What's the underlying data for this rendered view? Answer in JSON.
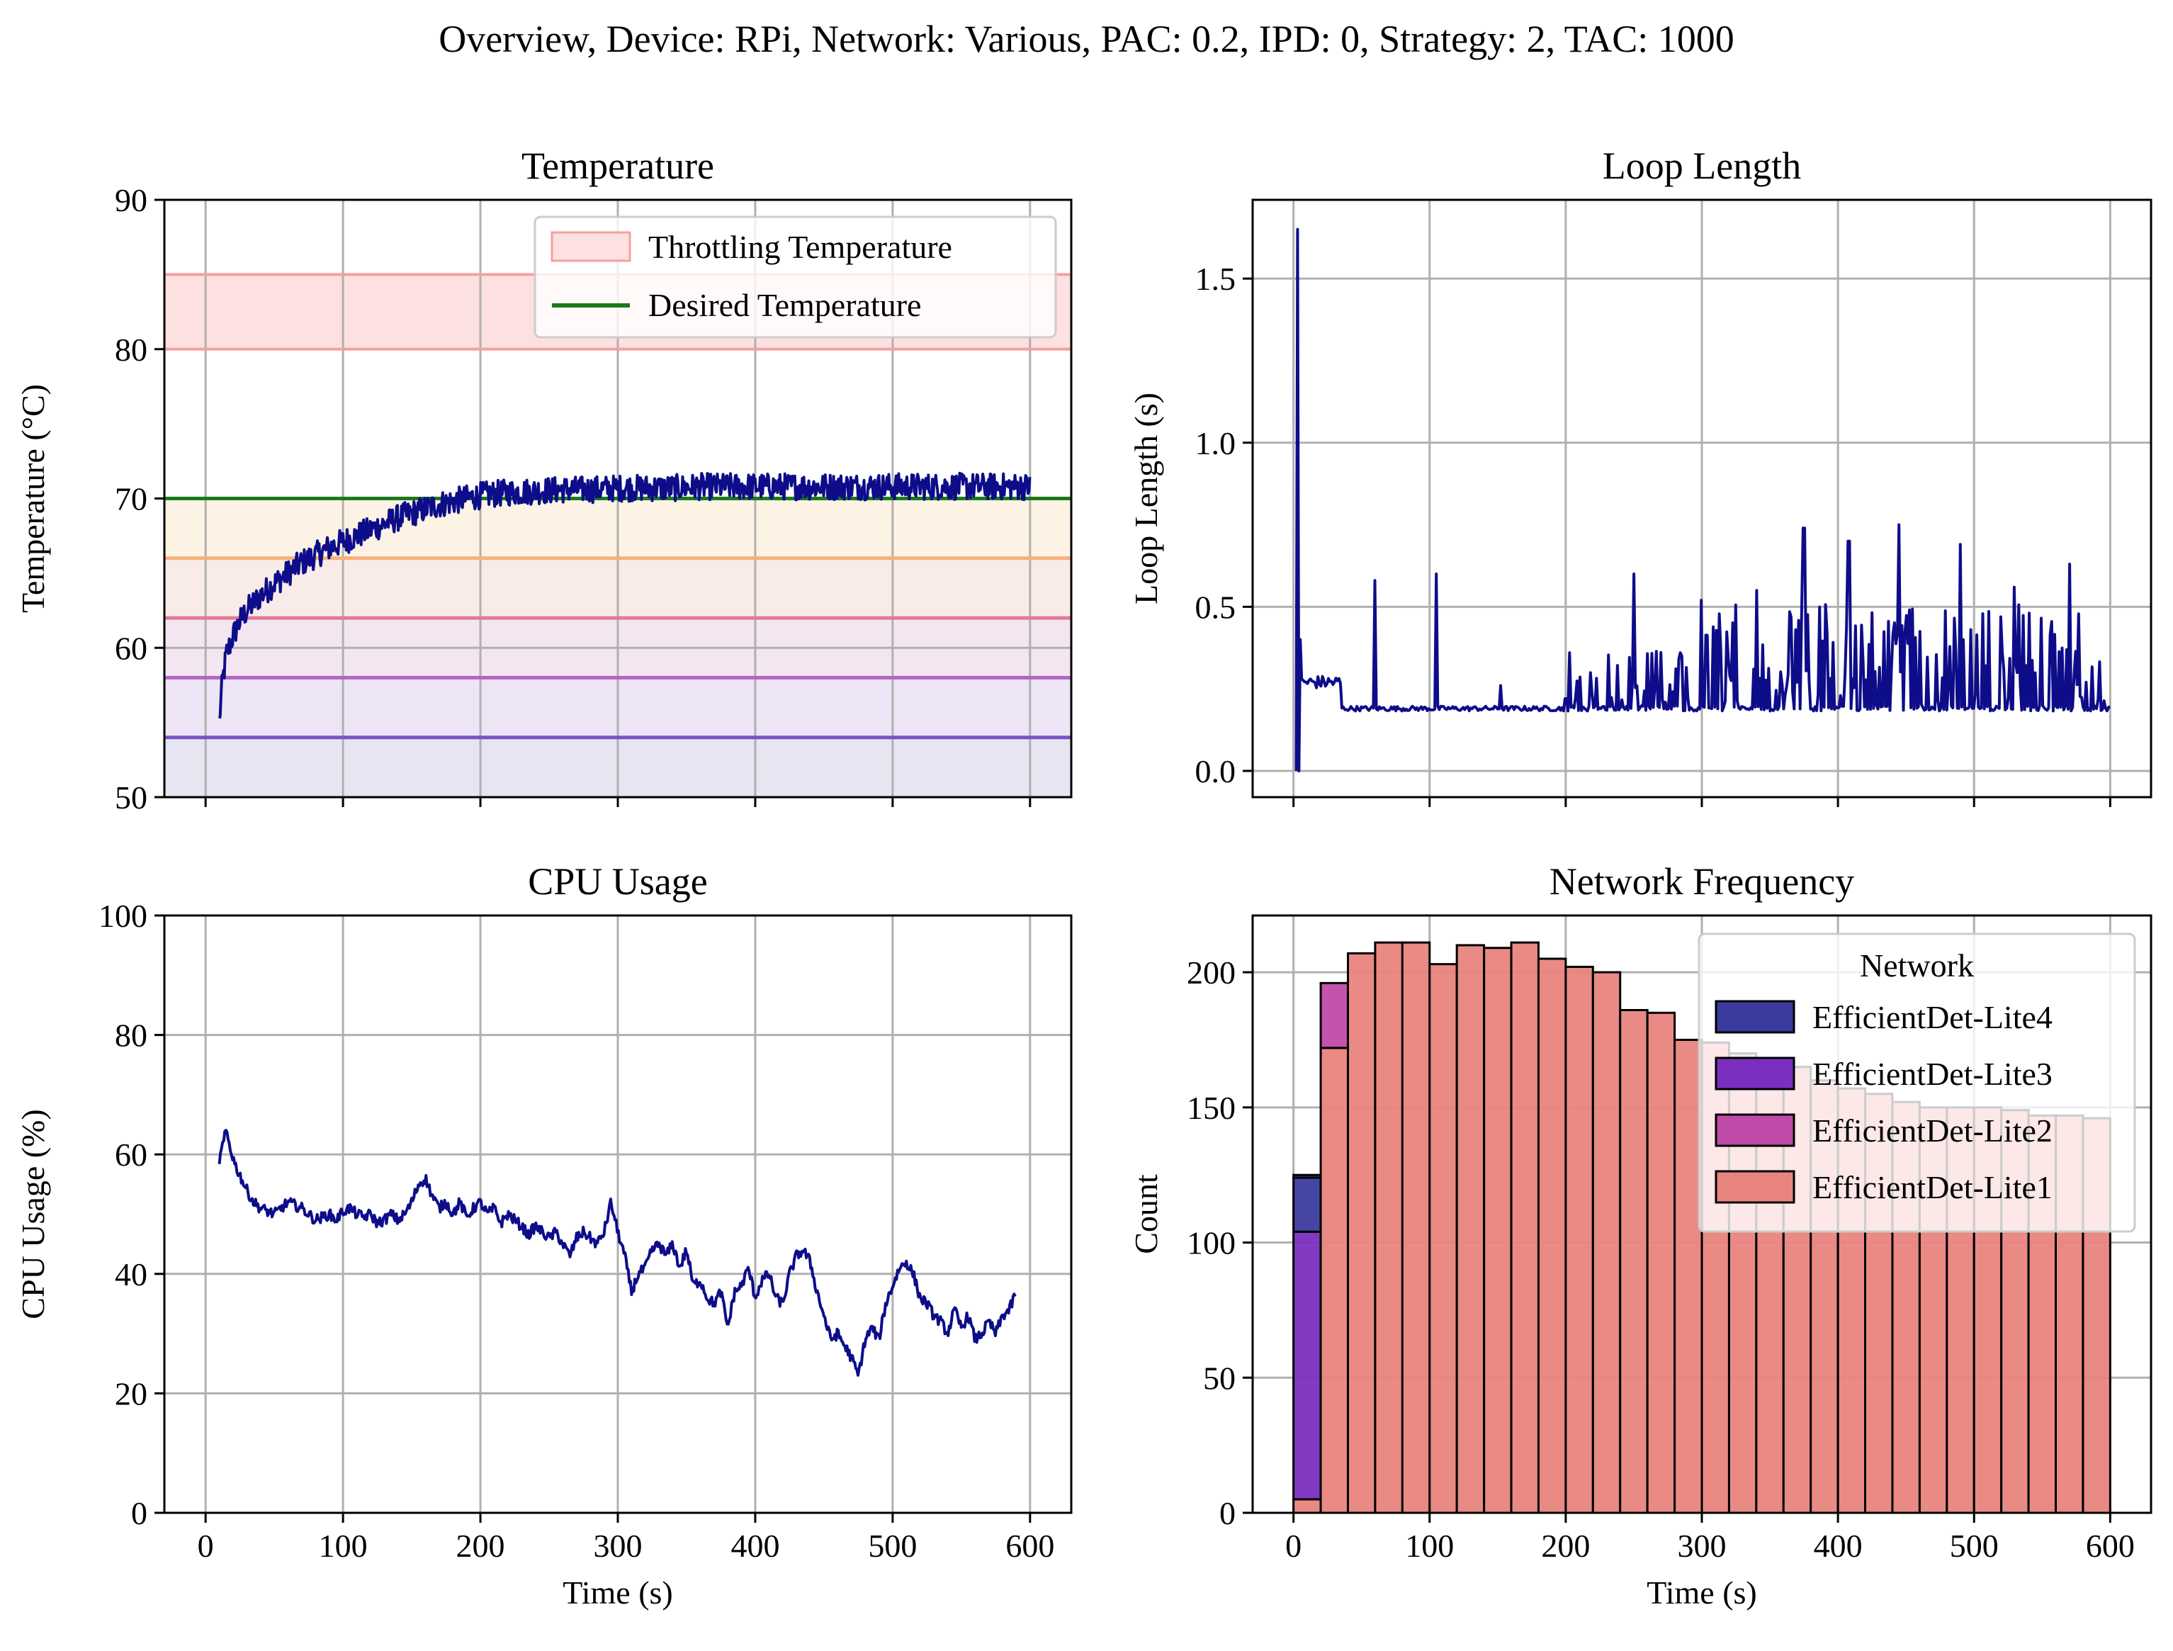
{
  "suptitle": "Overview, Device: RPi, Network: Various, PAC: 0.2, IPD: 0, Strategy: 2, TAC: 1000",
  "colors": {
    "line": "#0d0d8a",
    "grid": "#b0b0b0",
    "desired": "#1a7a1a",
    "throttle_fill": "#fde0e0",
    "throttle_edge": "#f4a0a0",
    "lite4": "#3b3b9e",
    "lite3": "#7b2fbf",
    "lite2": "#c04aa8",
    "lite1": "#e8847e"
  },
  "chart_data": [
    {
      "id": "temperature",
      "type": "line",
      "title": "Temperature",
      "xlabel": "",
      "ylabel": "Temperature (°C)",
      "xlim": [
        -30,
        630
      ],
      "ylim": [
        50,
        90
      ],
      "xticks": [
        0,
        100,
        200,
        300,
        400,
        500,
        600
      ],
      "yticks": [
        50,
        60,
        70,
        80,
        90
      ],
      "ytick_labels": [
        "50",
        "60",
        "70",
        "80",
        "90"
      ],
      "grid": true,
      "legend": {
        "placement": "top-right",
        "entries": [
          {
            "label": "Throttling Temperature",
            "kind": "patch"
          },
          {
            "label": "Desired Temperature",
            "kind": "line"
          }
        ]
      },
      "throttling_band": [
        80,
        85
      ],
      "desired_temperature": 70,
      "threshold_lines": [
        {
          "y": 66,
          "color": "#f5b07a",
          "fill": "#fdf3e4"
        },
        {
          "y": 62,
          "color": "#e07a96",
          "fill": "#f9ebe8"
        },
        {
          "y": 58,
          "color": "#b264c2",
          "fill": "#f3e6f1"
        },
        {
          "y": 54,
          "color": "#7a52c4",
          "fill": "#ede4f5"
        },
        {
          "y": 50,
          "color": "#7a52c4",
          "fill": "#e6e6f2"
        }
      ],
      "series": [
        {
          "x": [
            10,
            12,
            15,
            20,
            25,
            30,
            40,
            50,
            60,
            70,
            80,
            90,
            100,
            110,
            120,
            130,
            140,
            150,
            160,
            170,
            180,
            190,
            200,
            220,
            240,
            260,
            280,
            300,
            320,
            340,
            360,
            380,
            400,
            420,
            440,
            460,
            480,
            500,
            520,
            540,
            560,
            580,
            600
          ],
          "y": [
            55,
            57.5,
            59.5,
            60.8,
            61.8,
            62.5,
            63.5,
            64.3,
            65,
            65.7,
            66.2,
            66.7,
            67.1,
            67.5,
            67.9,
            68.3,
            68.7,
            69,
            69.3,
            69.6,
            69.8,
            70,
            70.2,
            70.4,
            70.5,
            70.6,
            70.6,
            70.7,
            70.7,
            70.7,
            70.8,
            70.8,
            70.8,
            70.8,
            70.8,
            70.8,
            70.8,
            70.8,
            70.8,
            70.8,
            70.8,
            70.8,
            70.8
          ],
          "noise_band": 0.9
        }
      ]
    },
    {
      "id": "loop_length",
      "type": "line",
      "title": "Loop Length",
      "xlabel": "",
      "ylabel": "Loop Length (s)",
      "xlim": [
        -30,
        630
      ],
      "ylim": [
        -0.08,
        1.74
      ],
      "xticks": [
        0,
        100,
        200,
        300,
        400,
        500,
        600
      ],
      "yticks": [
        0,
        0.5,
        1.0,
        1.5
      ],
      "ytick_labels": [
        "0.0",
        "0.5",
        "1.0",
        "1.5"
      ],
      "grid": true,
      "spikes": [
        {
          "x": 2,
          "y": 0.0
        },
        {
          "x": 3,
          "y": 1.65
        },
        {
          "x": 5,
          "y": 0.4
        },
        {
          "x": 60,
          "y": 0.58
        },
        {
          "x": 105,
          "y": 0.6
        },
        {
          "x": 152,
          "y": 0.26
        },
        {
          "x": 200,
          "y": 0.22
        },
        {
          "x": 250,
          "y": 0.6
        },
        {
          "x": 300,
          "y": 0.52
        },
        {
          "x": 340,
          "y": 0.55
        },
        {
          "x": 375,
          "y": 0.74
        },
        {
          "x": 408,
          "y": 0.7
        },
        {
          "x": 445,
          "y": 0.75
        },
        {
          "x": 490,
          "y": 0.69
        },
        {
          "x": 530,
          "y": 0.56
        },
        {
          "x": 570,
          "y": 0.63
        }
      ],
      "baseline": 0.19
    },
    {
      "id": "cpu_usage",
      "type": "line",
      "title": "CPU Usage",
      "xlabel": "Time (s)",
      "ylabel": "CPU Usage (%)",
      "xlim": [
        -30,
        630
      ],
      "ylim": [
        0,
        100
      ],
      "xticks": [
        0,
        100,
        200,
        300,
        400,
        500,
        600
      ],
      "xtick_labels": [
        "0",
        "100",
        "200",
        "300",
        "400",
        "500",
        "600"
      ],
      "yticks": [
        0,
        20,
        40,
        60,
        80,
        100
      ],
      "ytick_labels": [
        "0",
        "20",
        "40",
        "60",
        "80",
        "100"
      ],
      "grid": true,
      "series": [
        {
          "x": [
            10,
            12,
            15,
            18,
            22,
            26,
            30,
            35,
            40,
            45,
            50,
            55,
            60,
            65,
            70,
            75,
            80,
            85,
            90,
            95,
            100,
            105,
            110,
            115,
            120,
            125,
            130,
            135,
            140,
            145,
            150,
            155,
            160,
            165,
            170,
            175,
            180,
            185,
            190,
            195,
            200,
            205,
            210,
            215,
            220,
            225,
            230,
            235,
            240,
            245,
            250,
            255,
            260,
            265,
            270,
            275,
            280,
            285,
            290,
            295,
            300,
            305,
            310,
            315,
            320,
            325,
            330,
            335,
            340,
            345,
            350,
            355,
            360,
            365,
            370,
            375,
            380,
            385,
            390,
            395,
            400,
            405,
            410,
            415,
            420,
            425,
            430,
            435,
            440,
            445,
            450,
            455,
            460,
            465,
            470,
            475,
            480,
            485,
            490,
            495,
            500,
            505,
            510,
            515,
            520,
            525,
            530,
            535,
            540,
            545,
            550,
            555,
            560,
            565,
            570,
            575,
            580,
            585,
            590
          ],
          "y": [
            59,
            61,
            64,
            61,
            58,
            56,
            54,
            52,
            51,
            50.5,
            50,
            51,
            52,
            51.5,
            51,
            50,
            49,
            49.5,
            50,
            49,
            50.5,
            51,
            50,
            49.5,
            50,
            48.5,
            49,
            50,
            49,
            50,
            52,
            55,
            56,
            53,
            51,
            52,
            50,
            52,
            49.5,
            51,
            52,
            50,
            51,
            48.5,
            50,
            49,
            48,
            46.5,
            48,
            47,
            46,
            47,
            45,
            43,
            46,
            47,
            46,
            45,
            47,
            52,
            47,
            43,
            37,
            40,
            41,
            44,
            45,
            43,
            45,
            41,
            44,
            38,
            39,
            36,
            35,
            37,
            31,
            37,
            38,
            41,
            36,
            39,
            40,
            36,
            35,
            40,
            43,
            44,
            42,
            37,
            33,
            29,
            30,
            28,
            26,
            23,
            29,
            31,
            29,
            35,
            38,
            41,
            42,
            40,
            36,
            35,
            33,
            32,
            30,
            34,
            31,
            33,
            29,
            30,
            32,
            30,
            33,
            34,
            37
          ]
        }
      ]
    },
    {
      "id": "network_frequency",
      "type": "bar",
      "title": "Network Frequency",
      "xlabel": "Time (s)",
      "ylabel": "Count",
      "xlim": [
        -30,
        630
      ],
      "ylim": [
        0,
        221
      ],
      "xticks": [
        0,
        100,
        200,
        300,
        400,
        500,
        600
      ],
      "xtick_labels": [
        "0",
        "100",
        "200",
        "300",
        "400",
        "500",
        "600"
      ],
      "yticks": [
        0,
        50,
        100,
        150,
        200
      ],
      "ytick_labels": [
        "0",
        "50",
        "100",
        "150",
        "200"
      ],
      "grid": true,
      "legend": {
        "placement": "top-right",
        "title": "Network",
        "entries": [
          "EfficientDet-Lite4",
          "EfficientDet-Lite3",
          "EfficientDet-Lite2",
          "EfficientDet-Lite1"
        ]
      },
      "bin_width": 20,
      "bin_starts": [
        0,
        20,
        40,
        60,
        80,
        100,
        120,
        140,
        160,
        180,
        200,
        220,
        240,
        260,
        280,
        300,
        320,
        340,
        360,
        380,
        400,
        420,
        440,
        460,
        480,
        500,
        520,
        540,
        560,
        580
      ],
      "series": [
        {
          "name": "EfficientDet-Lite1",
          "values": [
            5,
            172,
            207,
            211,
            211,
            203,
            210,
            209,
            211,
            205,
            202,
            200,
            186,
            185,
            175,
            174,
            170,
            168,
            165,
            160,
            157,
            155,
            152,
            150,
            150,
            150,
            149,
            147,
            147,
            146
          ]
        },
        {
          "name": "EfficientDet-Lite2",
          "values": [
            0,
            24,
            0,
            0,
            0,
            0,
            0,
            0,
            0,
            0,
            0,
            0,
            0,
            0,
            0,
            0,
            0,
            0,
            0,
            0,
            0,
            0,
            0,
            0,
            0,
            0,
            0,
            0,
            0,
            0
          ]
        },
        {
          "name": "EfficientDet-Lite3",
          "values": [
            99,
            0,
            0,
            0,
            0,
            0,
            0,
            0,
            0,
            0,
            0,
            0,
            0,
            0,
            0,
            0,
            0,
            0,
            0,
            0,
            0,
            0,
            0,
            0,
            0,
            0,
            0,
            0,
            0,
            0
          ]
        },
        {
          "name": "EfficientDet-Lite4",
          "values": [
            20,
            0,
            0,
            0,
            0,
            0,
            0,
            0,
            0,
            0,
            0,
            0,
            0,
            0,
            0,
            0,
            0,
            0,
            0,
            0,
            0,
            0,
            0,
            0,
            0,
            0,
            0,
            0,
            0,
            0
          ]
        },
        {
          "name": "other-top",
          "values": [
            1,
            0,
            0,
            0,
            0,
            0,
            0,
            0,
            0,
            0,
            0,
            0,
            0,
            0,
            0,
            0,
            0,
            0,
            0,
            0,
            0,
            0,
            0,
            0,
            0,
            0,
            0,
            0,
            0,
            0
          ]
        }
      ]
    }
  ]
}
